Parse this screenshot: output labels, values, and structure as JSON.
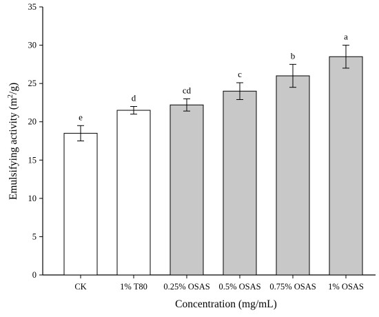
{
  "chart_data": {
    "type": "bar",
    "xlabel": "Concentration (mg/mL)",
    "ylabel_main": "Emulsifying activity (m",
    "ylabel_sup": "2",
    "ylabel_end": "/g)",
    "ylim": [
      0,
      35
    ],
    "yticks": [
      0,
      5,
      10,
      15,
      20,
      25,
      30,
      35
    ],
    "categories": [
      "CK",
      "1% T80",
      "0.25% OSAS",
      "0.5% OSAS",
      "0.75% OSAS",
      "1% OSAS"
    ],
    "values": [
      18.5,
      21.5,
      22.2,
      24.0,
      26.0,
      28.5
    ],
    "errors": [
      1.0,
      0.5,
      0.8,
      1.1,
      1.5,
      1.5
    ],
    "significance": [
      "e",
      "d",
      "cd",
      "c",
      "b",
      "a"
    ],
    "bar_colors": [
      "#ffffff",
      "#ffffff",
      "#c8c8c8",
      "#c8c8c8",
      "#c8c8c8",
      "#c8c8c8"
    ],
    "grid": false,
    "legend": "none"
  }
}
